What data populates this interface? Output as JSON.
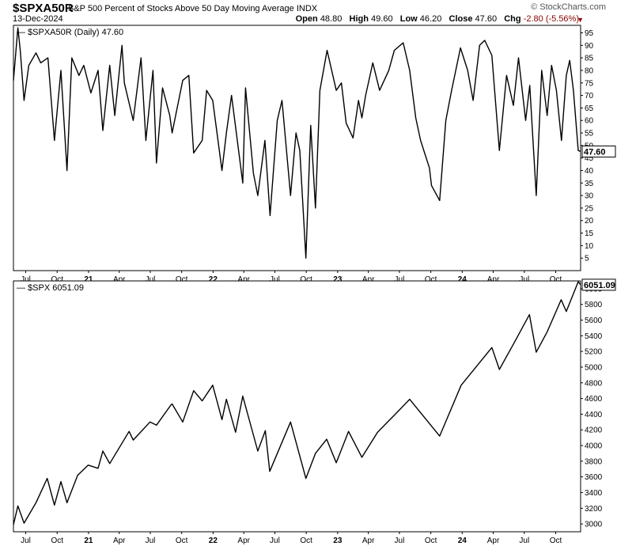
{
  "header": {
    "symbol": "$SPXA50R",
    "name": "S&P 500 Percent of Stocks Above 50 Day Moving Average",
    "exchange": "INDX",
    "date": "13-Dec-2024",
    "brand": "© StockCharts.com",
    "open_label": "Open",
    "open_value": "48.80",
    "high_label": "High",
    "high_value": "49.60",
    "low_label": "Low",
    "low_value": "46.20",
    "close_label": "Close",
    "close_value": "47.60",
    "chg_label": "Chg",
    "chg_value": "-2.80 (-5.56%)",
    "chg_color": "#8b0000"
  },
  "x_axis_labels": [
    "Jul",
    "Oct",
    "21",
    "Apr",
    "Jul",
    "Oct",
    "22",
    "Apr",
    "Jul",
    "Oct",
    "23",
    "Apr",
    "Jul",
    "Oct",
    "24",
    "Apr",
    "Jul",
    "Oct"
  ],
  "chart_data": [
    {
      "type": "line",
      "panel": "top",
      "legend": "$SPXA50R (Daily) 47.60",
      "last_value_label": "47.60",
      "ylim": [
        0,
        98
      ],
      "yticks": [
        5,
        10,
        15,
        20,
        25,
        30,
        35,
        40,
        45,
        50,
        55,
        60,
        65,
        70,
        75,
        80,
        85,
        90,
        95
      ],
      "x_start": "2020-05-26",
      "x_end": "2024-12-13",
      "grid": false,
      "series": [
        {
          "x": [
            "2020-05-26",
            "2020-06-08",
            "2020-06-15",
            "2020-06-26",
            "2020-07-10",
            "2020-07-31",
            "2020-08-14",
            "2020-09-04",
            "2020-09-23",
            "2020-10-12",
            "2020-10-30",
            "2020-11-13",
            "2020-12-04",
            "2020-12-18",
            "2021-01-08",
            "2021-01-29",
            "2021-02-12",
            "2021-03-04",
            "2021-03-19",
            "2021-04-09",
            "2021-04-16",
            "2021-05-12",
            "2021-06-04",
            "2021-06-18",
            "2021-07-09",
            "2021-07-19",
            "2021-08-06",
            "2021-08-27",
            "2021-09-03",
            "2021-10-04",
            "2021-10-22",
            "2021-11-05",
            "2021-11-30",
            "2021-12-13",
            "2021-12-31",
            "2022-01-27",
            "2022-02-09",
            "2022-02-24",
            "2022-03-29",
            "2022-04-06",
            "2022-04-29",
            "2022-05-12",
            "2022-06-02",
            "2022-06-17",
            "2022-07-08",
            "2022-07-22",
            "2022-08-16",
            "2022-09-01",
            "2022-09-12",
            "2022-09-30",
            "2022-10-14",
            "2022-10-28",
            "2022-11-10",
            "2022-12-01",
            "2022-12-28",
            "2023-01-12",
            "2023-01-26",
            "2023-02-15",
            "2023-03-03",
            "2023-03-13",
            "2023-03-24",
            "2023-04-14",
            "2023-05-04",
            "2023-05-31",
            "2023-06-16",
            "2023-07-12",
            "2023-07-31",
            "2023-08-18",
            "2023-09-01",
            "2023-09-27",
            "2023-10-03",
            "2023-10-27",
            "2023-11-14",
            "2023-12-01",
            "2023-12-27",
            "2024-01-17",
            "2024-02-02",
            "2024-02-21",
            "2024-03-07",
            "2024-03-28",
            "2024-04-19",
            "2024-05-10",
            "2024-05-30",
            "2024-06-14",
            "2024-07-05",
            "2024-07-17",
            "2024-08-05",
            "2024-08-21",
            "2024-09-06",
            "2024-09-19",
            "2024-10-03",
            "2024-10-18",
            "2024-11-01",
            "2024-11-11",
            "2024-11-22",
            "2024-12-06",
            "2024-12-13"
          ],
          "values": [
            76,
            97,
            88,
            68,
            82,
            87,
            83,
            85,
            52,
            80,
            40,
            85,
            78,
            82,
            71,
            80,
            56,
            82,
            62,
            90,
            75,
            60,
            85,
            52,
            80,
            43,
            73,
            62,
            55,
            76,
            78,
            47,
            52,
            72,
            68,
            40,
            55,
            70,
            35,
            73,
            39,
            30,
            52,
            22,
            60,
            68,
            30,
            55,
            48,
            5,
            58,
            25,
            72,
            88,
            72,
            75,
            59,
            53,
            68,
            61,
            70,
            83,
            72,
            80,
            88,
            91,
            80,
            61,
            52,
            41,
            34,
            28,
            60,
            72,
            89,
            80,
            68,
            90,
            92,
            86,
            48,
            78,
            66,
            85,
            60,
            74,
            30,
            80,
            62,
            82,
            72,
            52,
            78,
            84,
            72,
            48,
            47.6
          ]
        }
      ]
    },
    {
      "type": "line",
      "panel": "bottom",
      "legend": "$SPX 6051.09",
      "last_value_label": "6051.09",
      "ylim": [
        2900,
        6100
      ],
      "yticks": [
        3000,
        3200,
        3400,
        3600,
        3800,
        4000,
        4200,
        4400,
        4600,
        4800,
        5000,
        5200,
        5400,
        5600,
        5800,
        6000
      ],
      "x_start": "2020-05-26",
      "x_end": "2024-12-13",
      "grid": false,
      "series": [
        {
          "x": [
            "2020-05-26",
            "2020-06-08",
            "2020-06-26",
            "2020-07-31",
            "2020-09-02",
            "2020-09-23",
            "2020-10-12",
            "2020-10-30",
            "2020-11-30",
            "2020-12-31",
            "2021-01-29",
            "2021-02-12",
            "2021-03-04",
            "2021-04-30",
            "2021-05-12",
            "2021-06-30",
            "2021-07-19",
            "2021-08-31",
            "2021-09-03",
            "2021-10-04",
            "2021-11-05",
            "2021-11-30",
            "2021-12-31",
            "2022-01-27",
            "2022-02-09",
            "2022-03-08",
            "2022-03-29",
            "2022-05-12",
            "2022-06-03",
            "2022-06-16",
            "2022-08-16",
            "2022-09-30",
            "2022-10-28",
            "2022-11-30",
            "2022-12-28",
            "2023-02-02",
            "2023-03-13",
            "2023-04-28",
            "2023-06-30",
            "2023-07-31",
            "2023-10-27",
            "2023-12-29",
            "2024-03-28",
            "2024-04-19",
            "2024-05-31",
            "2024-07-16",
            "2024-08-05",
            "2024-09-06",
            "2024-10-17",
            "2024-11-01",
            "2024-12-06",
            "2024-12-13"
          ],
          "values": [
            2990,
            3230,
            3010,
            3270,
            3580,
            3240,
            3540,
            3270,
            3620,
            3750,
            3710,
            3930,
            3770,
            4180,
            4070,
            4300,
            4260,
            4520,
            4530,
            4300,
            4700,
            4570,
            4770,
            4330,
            4590,
            4170,
            4630,
            3930,
            4190,
            3670,
            4300,
            3580,
            3900,
            4080,
            3780,
            4180,
            3850,
            4170,
            4450,
            4590,
            4120,
            4770,
            5250,
            4970,
            5300,
            5670,
            5190,
            5450,
            5860,
            5710,
            6090,
            6051
          ]
        }
      ]
    }
  ]
}
